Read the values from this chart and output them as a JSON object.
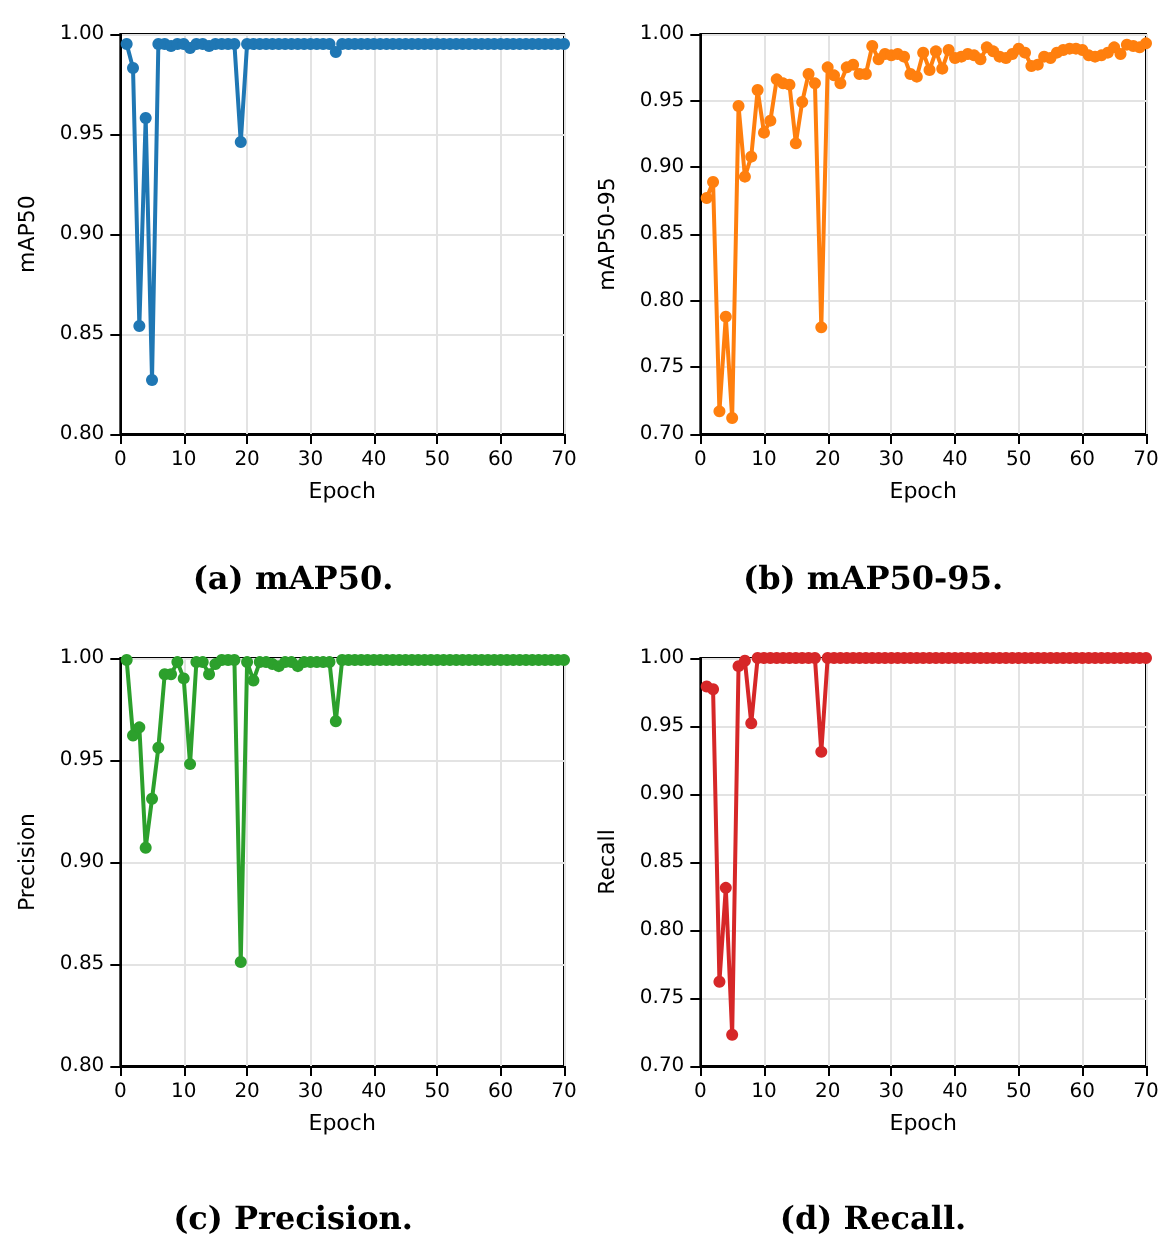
{
  "chart_data": [
    {
      "type": "line",
      "title": "(a) mAP50.",
      "xlabel": "Epoch",
      "ylabel": "mAP50",
      "grid": true,
      "marker": "circle",
      "line_style": "solid",
      "xlim": [
        0,
        70
      ],
      "xticks": [
        0,
        10,
        20,
        30,
        40,
        50,
        60,
        70
      ],
      "ylim": [
        0.8,
        1.0
      ],
      "yticks": [
        {
          "value": 0.8,
          "label": "0.80"
        },
        {
          "value": 0.85,
          "label": "0.85"
        },
        {
          "value": 0.9,
          "label": "0.90"
        },
        {
          "value": 0.95,
          "label": "0.95"
        },
        {
          "value": 1.0,
          "label": "1.00"
        }
      ],
      "x": [
        1,
        2,
        3,
        4,
        5,
        6,
        7,
        8,
        9,
        10,
        11,
        12,
        13,
        14,
        15,
        16,
        17,
        18,
        19,
        20,
        21,
        22,
        23,
        24,
        25,
        26,
        27,
        28,
        29,
        30,
        31,
        32,
        33,
        34,
        35,
        36,
        37,
        38,
        39,
        40,
        41,
        42,
        43,
        44,
        45,
        46,
        47,
        48,
        49,
        50,
        51,
        52,
        53,
        54,
        55,
        56,
        57,
        58,
        59,
        60,
        61,
        62,
        63,
        64,
        65,
        66,
        67,
        68,
        69,
        70
      ],
      "series": [
        {
          "color": "#1f77b4",
          "values": [
            0.995,
            0.983,
            0.854,
            0.958,
            0.827,
            0.995,
            0.995,
            0.994,
            0.995,
            0.995,
            0.993,
            0.995,
            0.995,
            0.994,
            0.995,
            0.995,
            0.995,
            0.995,
            0.946,
            0.995,
            0.995,
            0.995,
            0.995,
            0.995,
            0.995,
            0.995,
            0.995,
            0.995,
            0.995,
            0.995,
            0.995,
            0.995,
            0.995,
            0.991,
            0.995,
            0.995,
            0.995,
            0.995,
            0.995,
            0.995,
            0.995,
            0.995,
            0.995,
            0.995,
            0.995,
            0.995,
            0.995,
            0.995,
            0.995,
            0.995,
            0.995,
            0.995,
            0.995,
            0.995,
            0.995,
            0.995,
            0.995,
            0.995,
            0.995,
            0.995,
            0.995,
            0.995,
            0.995,
            0.995,
            0.995,
            0.995,
            0.995,
            0.995,
            0.995,
            0.995
          ]
        }
      ]
    },
    {
      "type": "line",
      "title": "(b) mAP50-95.",
      "xlabel": "Epoch",
      "ylabel": "mAP50-95",
      "grid": true,
      "marker": "circle",
      "line_style": "solid",
      "xlim": [
        0,
        70
      ],
      "xticks": [
        0,
        10,
        20,
        30,
        40,
        50,
        60,
        70
      ],
      "ylim": [
        0.7,
        1.0
      ],
      "yticks": [
        {
          "value": 0.7,
          "label": "0.70"
        },
        {
          "value": 0.75,
          "label": "0.75"
        },
        {
          "value": 0.8,
          "label": "0.80"
        },
        {
          "value": 0.85,
          "label": "0.85"
        },
        {
          "value": 0.9,
          "label": "0.90"
        },
        {
          "value": 0.95,
          "label": "0.95"
        },
        {
          "value": 1.0,
          "label": "1.00"
        }
      ],
      "x": [
        1,
        2,
        3,
        4,
        5,
        6,
        7,
        8,
        9,
        10,
        11,
        12,
        13,
        14,
        15,
        16,
        17,
        18,
        19,
        20,
        21,
        22,
        23,
        24,
        25,
        26,
        27,
        28,
        29,
        30,
        31,
        32,
        33,
        34,
        35,
        36,
        37,
        38,
        39,
        40,
        41,
        42,
        43,
        44,
        45,
        46,
        47,
        48,
        49,
        50,
        51,
        52,
        53,
        54,
        55,
        56,
        57,
        58,
        59,
        60,
        61,
        62,
        63,
        64,
        65,
        66,
        67,
        68,
        69,
        70
      ],
      "series": [
        {
          "color": "#ff7f0e",
          "values": [
            0.877,
            0.889,
            0.717,
            0.788,
            0.712,
            0.946,
            0.893,
            0.908,
            0.958,
            0.926,
            0.935,
            0.966,
            0.963,
            0.962,
            0.918,
            0.949,
            0.97,
            0.963,
            0.78,
            0.975,
            0.969,
            0.963,
            0.975,
            0.977,
            0.97,
            0.97,
            0.991,
            0.981,
            0.985,
            0.984,
            0.985,
            0.983,
            0.97,
            0.968,
            0.986,
            0.973,
            0.987,
            0.974,
            0.988,
            0.982,
            0.983,
            0.985,
            0.984,
            0.981,
            0.99,
            0.987,
            0.983,
            0.982,
            0.985,
            0.989,
            0.986,
            0.976,
            0.977,
            0.983,
            0.982,
            0.986,
            0.988,
            0.989,
            0.989,
            0.988,
            0.984,
            0.983,
            0.984,
            0.986,
            0.99,
            0.985,
            0.992,
            0.991,
            0.99,
            0.993
          ]
        }
      ]
    },
    {
      "type": "line",
      "title": "(c) Precision.",
      "xlabel": "Epoch",
      "ylabel": "Precision",
      "grid": true,
      "marker": "circle",
      "line_style": "solid",
      "xlim": [
        0,
        70
      ],
      "xticks": [
        0,
        10,
        20,
        30,
        40,
        50,
        60,
        70
      ],
      "ylim": [
        0.8,
        1.0
      ],
      "yticks": [
        {
          "value": 0.8,
          "label": "0.80"
        },
        {
          "value": 0.85,
          "label": "0.85"
        },
        {
          "value": 0.9,
          "label": "0.90"
        },
        {
          "value": 0.95,
          "label": "0.95"
        },
        {
          "value": 1.0,
          "label": "1.00"
        }
      ],
      "x": [
        1,
        2,
        3,
        4,
        5,
        6,
        7,
        8,
        9,
        10,
        11,
        12,
        13,
        14,
        15,
        16,
        17,
        18,
        19,
        20,
        21,
        22,
        23,
        24,
        25,
        26,
        27,
        28,
        29,
        30,
        31,
        32,
        33,
        34,
        35,
        36,
        37,
        38,
        39,
        40,
        41,
        42,
        43,
        44,
        45,
        46,
        47,
        48,
        49,
        50,
        51,
        52,
        53,
        54,
        55,
        56,
        57,
        58,
        59,
        60,
        61,
        62,
        63,
        64,
        65,
        66,
        67,
        68,
        69,
        70
      ],
      "series": [
        {
          "color": "#2ca02c",
          "values": [
            0.999,
            0.962,
            0.966,
            0.907,
            0.931,
            0.956,
            0.992,
            0.992,
            0.998,
            0.99,
            0.948,
            0.998,
            0.998,
            0.992,
            0.997,
            0.999,
            0.999,
            0.999,
            0.851,
            0.998,
            0.989,
            0.998,
            0.998,
            0.997,
            0.996,
            0.998,
            0.998,
            0.996,
            0.998,
            0.998,
            0.998,
            0.998,
            0.998,
            0.969,
            0.999,
            0.999,
            0.999,
            0.999,
            0.999,
            0.999,
            0.999,
            0.999,
            0.999,
            0.999,
            0.999,
            0.999,
            0.999,
            0.999,
            0.999,
            0.999,
            0.999,
            0.999,
            0.999,
            0.999,
            0.999,
            0.999,
            0.999,
            0.999,
            0.999,
            0.999,
            0.999,
            0.999,
            0.999,
            0.999,
            0.999,
            0.999,
            0.999,
            0.999,
            0.999,
            0.999
          ]
        }
      ]
    },
    {
      "type": "line",
      "title": "(d) Recall.",
      "xlabel": "Epoch",
      "ylabel": "Recall",
      "grid": true,
      "marker": "circle",
      "line_style": "solid",
      "xlim": [
        0,
        70
      ],
      "xticks": [
        0,
        10,
        20,
        30,
        40,
        50,
        60,
        70
      ],
      "ylim": [
        0.7,
        1.0
      ],
      "yticks": [
        {
          "value": 0.7,
          "label": "0.70"
        },
        {
          "value": 0.75,
          "label": "0.75"
        },
        {
          "value": 0.8,
          "label": "0.80"
        },
        {
          "value": 0.85,
          "label": "0.85"
        },
        {
          "value": 0.9,
          "label": "0.90"
        },
        {
          "value": 0.95,
          "label": "0.95"
        },
        {
          "value": 1.0,
          "label": "1.00"
        }
      ],
      "x": [
        1,
        2,
        3,
        4,
        5,
        6,
        7,
        8,
        9,
        10,
        11,
        12,
        13,
        14,
        15,
        16,
        17,
        18,
        19,
        20,
        21,
        22,
        23,
        24,
        25,
        26,
        27,
        28,
        29,
        30,
        31,
        32,
        33,
        34,
        35,
        36,
        37,
        38,
        39,
        40,
        41,
        42,
        43,
        44,
        45,
        46,
        47,
        48,
        49,
        50,
        51,
        52,
        53,
        54,
        55,
        56,
        57,
        58,
        59,
        60,
        61,
        62,
        63,
        64,
        65,
        66,
        67,
        68,
        69,
        70
      ],
      "series": [
        {
          "color": "#d62728",
          "values": [
            0.979,
            0.977,
            0.762,
            0.831,
            0.723,
            0.994,
            0.998,
            0.952,
            1,
            1,
            1,
            1,
            1,
            1,
            1,
            1,
            1,
            1,
            0.931,
            1,
            1,
            1,
            1,
            1,
            1,
            1,
            1,
            1,
            1,
            1,
            1,
            1,
            1,
            1,
            1,
            1,
            1,
            1,
            1,
            1,
            1,
            1,
            1,
            1,
            1,
            1,
            1,
            1,
            1,
            1,
            1,
            1,
            1,
            1,
            1,
            1,
            1,
            1,
            1,
            1,
            1,
            1,
            1,
            1,
            1,
            1,
            1,
            1,
            1,
            1
          ]
        }
      ]
    }
  ]
}
